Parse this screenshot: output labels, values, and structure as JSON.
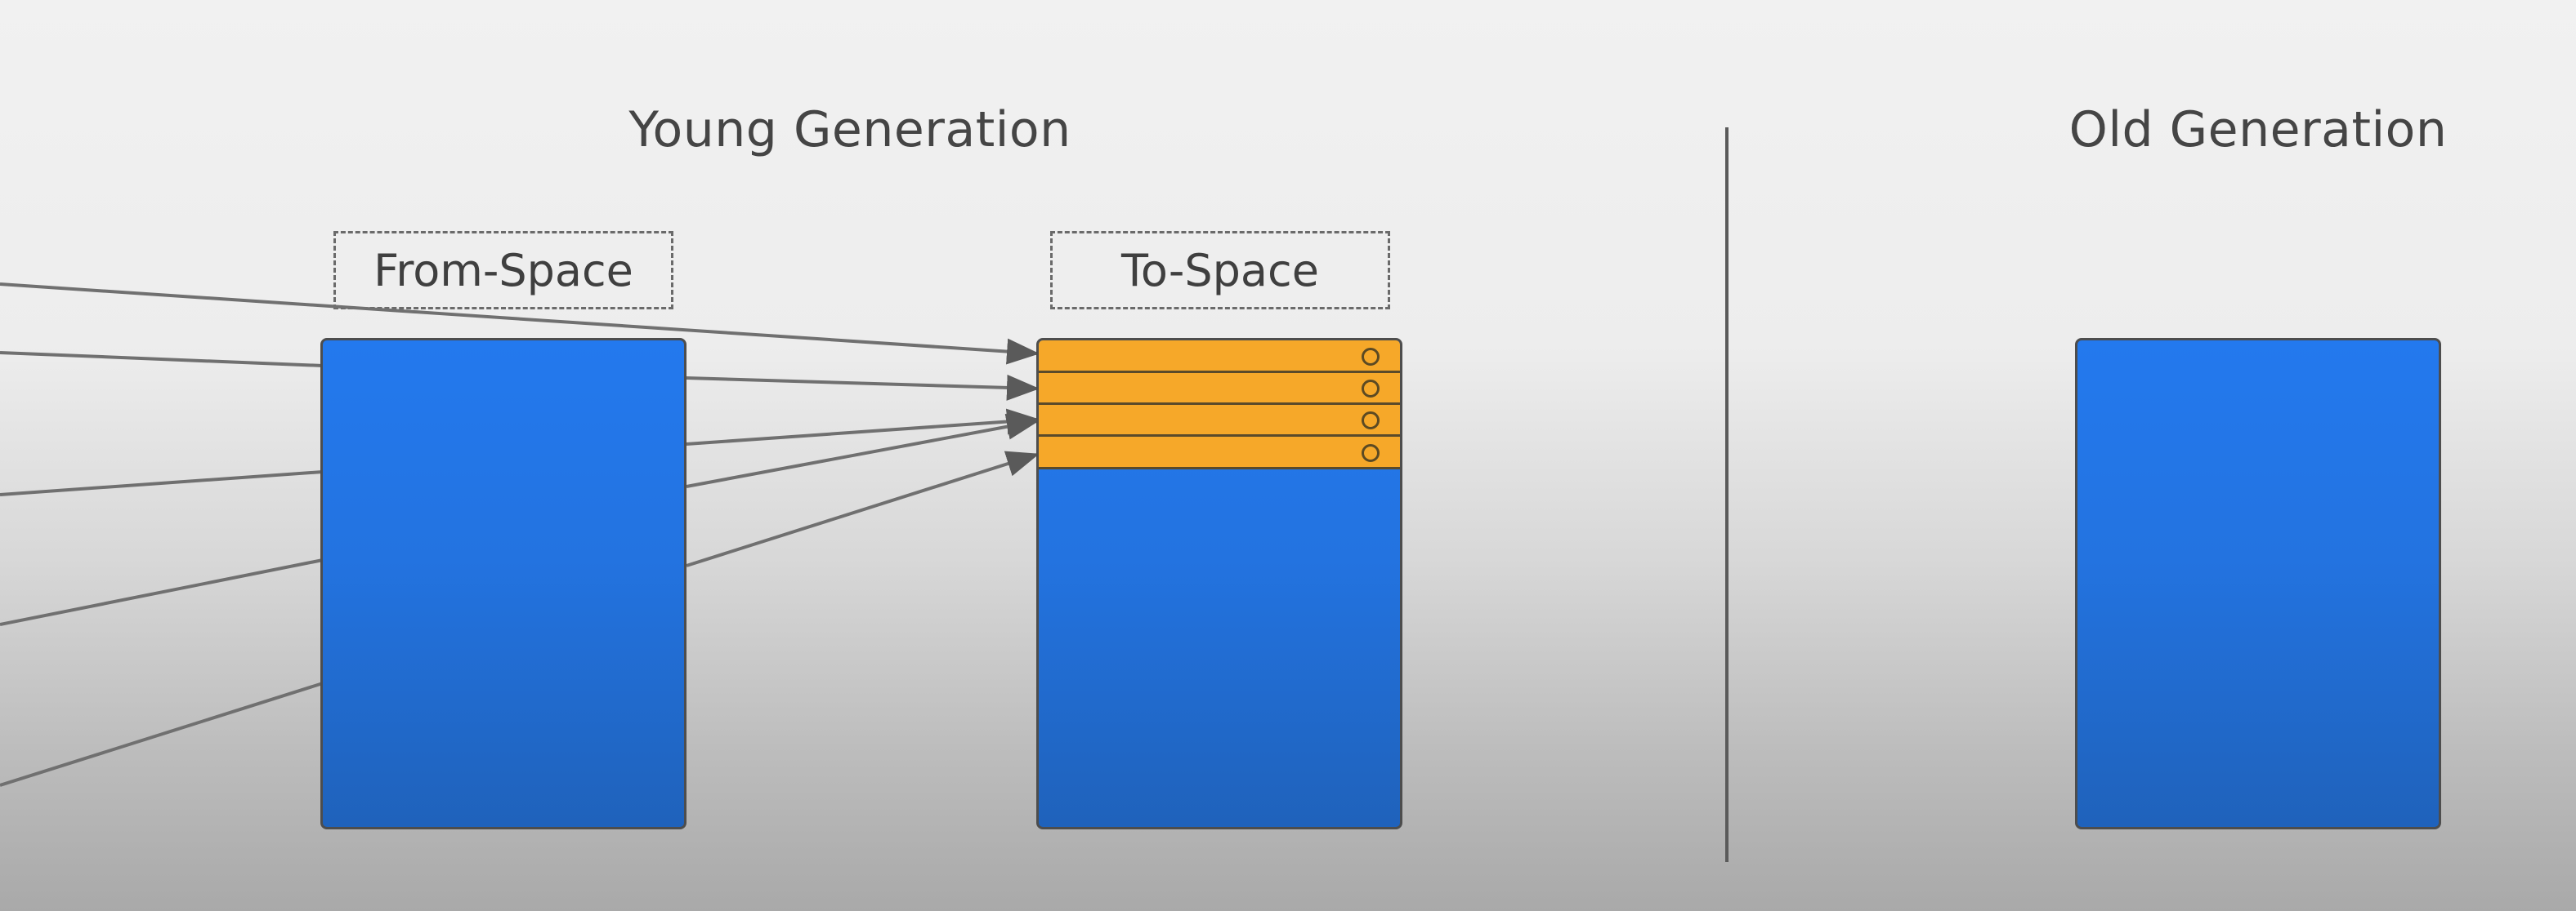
{
  "diagram": {
    "young_generation": {
      "title": "Young Generation",
      "from_space": {
        "label": "From-Space"
      },
      "to_space": {
        "label": "To-Space",
        "allocated_slots": 4
      }
    },
    "old_generation": {
      "title": "Old Generation"
    },
    "colors": {
      "region_blue": "#2374e6",
      "slot_orange": "#f6a829",
      "arrow_gray": "#6f6f6f"
    }
  }
}
